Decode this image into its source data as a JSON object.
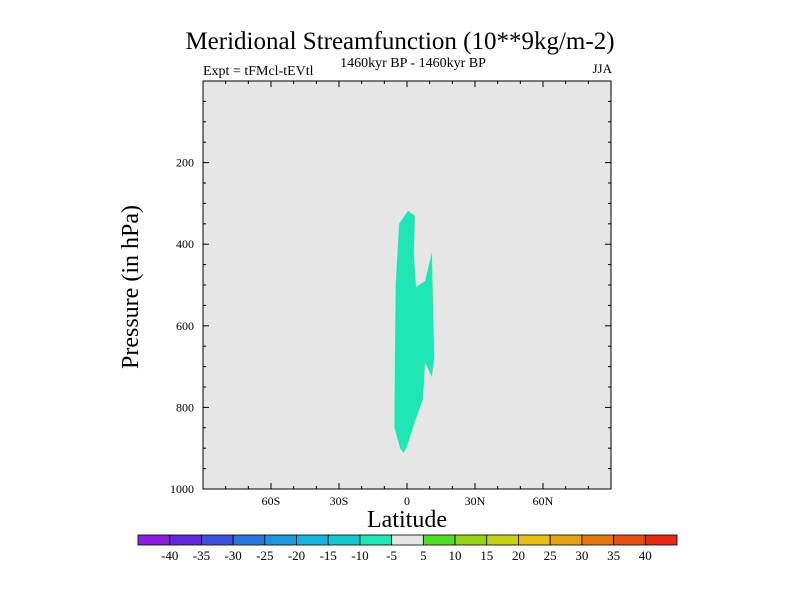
{
  "chart_data": {
    "type": "contour",
    "title": "Meridional Streamfunction (10**9kg/m-2)",
    "left_string": "Expt = tFMcl-tEVtl",
    "center_string": "1460kyr BP - 1460kyr BP",
    "right_string": "JJA",
    "xlabel": "Latitude",
    "ylabel": "Pressure (in hPa)",
    "xlim": [
      -90,
      90
    ],
    "ylim": [
      1000,
      0
    ],
    "x_ticks": [
      {
        "value": -60,
        "label": "60S"
      },
      {
        "value": -30,
        "label": "30S"
      },
      {
        "value": 0,
        "label": "0"
      },
      {
        "value": 30,
        "label": "30N"
      },
      {
        "value": 60,
        "label": "60N"
      }
    ],
    "y_ticks": [
      {
        "value": 200,
        "label": "200"
      },
      {
        "value": 400,
        "label": "400"
      },
      {
        "value": 600,
        "label": "600"
      },
      {
        "value": 800,
        "label": "800"
      },
      {
        "value": 1000,
        "label": "1000"
      }
    ],
    "background_color": "#e6e6e6",
    "filled_regions": [
      {
        "level_range": [
          -10,
          -5
        ],
        "color": "#1ee6b4",
        "outline": [
          [
            -3.5,
            350
          ],
          [
            0.5,
            318
          ],
          [
            3.5,
            330
          ],
          [
            3,
            425
          ],
          [
            4,
            505
          ],
          [
            8,
            490
          ],
          [
            11,
            420
          ],
          [
            12,
            680
          ],
          [
            11,
            725
          ],
          [
            8,
            690
          ],
          [
            7,
            780
          ],
          [
            3.5,
            835
          ],
          [
            0,
            895
          ],
          [
            -1.5,
            912
          ],
          [
            -3,
            900
          ],
          [
            -5.5,
            850
          ],
          [
            -5.5,
            790
          ],
          [
            -5,
            500
          ]
        ]
      }
    ],
    "colorbar": {
      "labels": [
        "-40",
        "-35",
        "-30",
        "-25",
        "-20",
        "-15",
        "-10",
        "-5",
        "5",
        "10",
        "15",
        "20",
        "25",
        "30",
        "35",
        "40"
      ],
      "colors": [
        "#8c1ee6",
        "#6428dc",
        "#3c50dc",
        "#2878dc",
        "#1e96dc",
        "#14b4dc",
        "#14c8d2",
        "#1ee6b4",
        "#e6e6e6",
        "#50dc28",
        "#96d214",
        "#c8d214",
        "#e6be14",
        "#e6a014",
        "#e67814",
        "#e65014",
        "#e62814"
      ]
    }
  }
}
